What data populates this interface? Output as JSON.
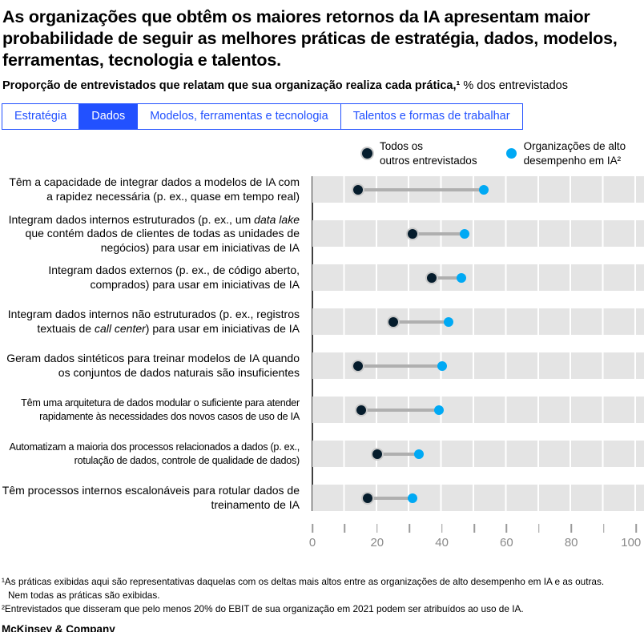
{
  "header": {
    "title": "As organizações que obtêm os maiores retornos da IA apresentam maior probabilidade de seguir as melhores práticas de estratégia, dados, modelos, ferramentas, tecnologia e talentos.",
    "subtitle_bold": "Proporção de entrevistados que relatam que sua organização realiza cada prática,¹",
    "subtitle_regular": " % dos entrevistados"
  },
  "tabs": [
    {
      "id": "estrategia",
      "label": "Estratégia",
      "active": false
    },
    {
      "id": "dados",
      "label": "Dados",
      "active": true
    },
    {
      "id": "modelos-ferramentas-tecnologia",
      "label": "Modelos, ferramentas e tecnologia",
      "active": false
    },
    {
      "id": "talentos-formas-trabalhar",
      "label": "Talentos e formas de trabalhar",
      "active": false
    }
  ],
  "legend": [
    {
      "series": "others",
      "color": "#051C2C",
      "label_lines": [
        "Todos os",
        "outros entrevistados"
      ]
    },
    {
      "series": "high-performers",
      "color": "#00A9F4",
      "label_lines": [
        "Organizações de alto",
        "desempenho em IA²"
      ]
    }
  ],
  "chart_data": {
    "type": "scatter",
    "variant": "dumbbell",
    "unit": "% dos entrevistados",
    "xlim": [
      0,
      100
    ],
    "x_ticks": [
      0,
      10,
      20,
      30,
      40,
      50,
      60,
      70,
      80,
      90,
      100
    ],
    "x_tick_labels": [
      "0",
      "20",
      "40",
      "60",
      "80",
      "100"
    ],
    "grid": true,
    "series": [
      {
        "name": "Todos os outros entrevistados",
        "color": "#051C2C"
      },
      {
        "name": "Organizações de alto desempenho em IA²",
        "color": "#00A9F4"
      }
    ],
    "rows": [
      {
        "label_segments": [
          {
            "text": "Têm a capacidade de integrar dados a modelos de IA com a rapidez necessária (p. ex., quase em tempo real)",
            "italic": false
          }
        ],
        "others": 14,
        "high_performers": 53,
        "condensed": false
      },
      {
        "label_segments": [
          {
            "text": "Integram dados internos estruturados (p. ex., um ",
            "italic": false
          },
          {
            "text": "data lake",
            "italic": true
          },
          {
            "text": " que contém dados de clientes de todas as unidades de negócios) para usar em iniciativas de IA",
            "italic": false
          }
        ],
        "others": 31,
        "high_performers": 47,
        "condensed": false
      },
      {
        "label_segments": [
          {
            "text": "Integram dados externos (p. ex., de código aberto, comprados) para usar em iniciativas de IA",
            "italic": false
          }
        ],
        "others": 37,
        "high_performers": 46,
        "condensed": false
      },
      {
        "label_segments": [
          {
            "text": "Integram dados internos não estruturados (p. ex., registros textuais de ",
            "italic": false
          },
          {
            "text": "call center",
            "italic": true
          },
          {
            "text": ") para usar em iniciativas de IA",
            "italic": false
          }
        ],
        "others": 25,
        "high_performers": 42,
        "condensed": false
      },
      {
        "label_segments": [
          {
            "text": "Geram dados sintéticos para treinar modelos de IA quando os conjuntos de dados naturais são insuficientes",
            "italic": false
          }
        ],
        "others": 14,
        "high_performers": 40,
        "condensed": false
      },
      {
        "label_segments": [
          {
            "text": "Têm uma arquitetura de dados modular o suficiente para atender rapidamente às necessidades dos novos casos de uso de IA",
            "italic": false
          }
        ],
        "others": 15,
        "high_performers": 39,
        "condensed": true
      },
      {
        "label_segments": [
          {
            "text": "Automatizam a maioria dos processos relacionados a dados (p. ex., rotulação de dados, controle de qualidade de dados)",
            "italic": false
          }
        ],
        "others": 20,
        "high_performers": 33,
        "condensed": true
      },
      {
        "label_segments": [
          {
            "text": "Têm processos internos escalonáveis para rotular dados de treinamento de IA",
            "italic": false
          }
        ],
        "others": 17,
        "high_performers": 31,
        "condensed": false
      }
    ]
  },
  "footnotes": {
    "line1": "¹As práticas exibidas aqui são representativas daquelas com os deltas mais altos entre as organizações de alto desempenho em IA e as outras.",
    "line2": "Nem todas as práticas são exibidas.",
    "line3": "²Entrevistados que disseram que pelo menos 20% do EBIT de sua organização em 2021 podem ser atribuídos ao uso de IA."
  },
  "footer": {
    "brand": "McKinsey & Company"
  },
  "colors": {
    "accent_blue": "#2251FF",
    "dot_dark": "#051C2C",
    "dot_cyan": "#00A9F4",
    "bar_gray": "#e4e4e4"
  }
}
